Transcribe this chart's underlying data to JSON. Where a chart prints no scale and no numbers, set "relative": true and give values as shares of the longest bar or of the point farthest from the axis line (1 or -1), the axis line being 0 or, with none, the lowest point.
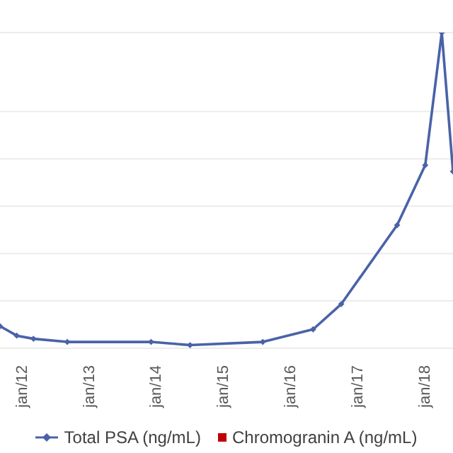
{
  "chart_data": {
    "type": "line",
    "relative": true,
    "xlim": [
      "2011-09",
      "2018-06"
    ],
    "xticks": [
      {
        "value": "2012-01",
        "label": "jan/12"
      },
      {
        "value": "2013-01",
        "label": "jan/13"
      },
      {
        "value": "2014-01",
        "label": "jan/14"
      },
      {
        "value": "2015-01",
        "label": "jan/15"
      },
      {
        "value": "2016-01",
        "label": "jan/16"
      },
      {
        "value": "2017-01",
        "label": "jan/17"
      },
      {
        "value": "2018-01",
        "label": "jan/18"
      }
    ],
    "x": [
      "2011-09",
      "2011-12",
      "2012-03",
      "2012-09",
      "2013-12",
      "2014-07",
      "2015-08",
      "2016-05",
      "2016-10",
      "2017-08",
      "2018-01",
      "2018-04",
      "2018-06"
    ],
    "series": [
      {
        "name": "Total PSA (ng/mL)",
        "color": "#4a62a8",
        "values": [
          0.07,
          0.04,
          0.03,
          0.02,
          0.02,
          0.01,
          0.02,
          0.06,
          0.14,
          0.39,
          0.58,
          1,
          0.56
        ]
      },
      {
        "name": "Chromogranin A (ng/mL)",
        "color": "#c00000",
        "type": "scatter",
        "marker": "square",
        "values": [
          null,
          null,
          null,
          null,
          null,
          null,
          null,
          null,
          null,
          null,
          null,
          null,
          null
        ]
      }
    ],
    "grid": "y",
    "legend": "bottom",
    "marker": "diamond",
    "line_style": "solid"
  }
}
